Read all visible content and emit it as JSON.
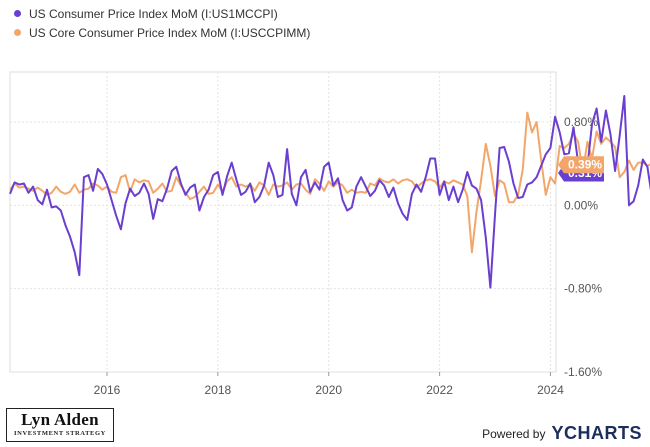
{
  "chart_data": {
    "type": "line",
    "title": "",
    "xlabel": "",
    "ylabel": "",
    "x_tick_labels": [
      "2016",
      "2018",
      "2020",
      "2022",
      "2024"
    ],
    "y_tick_labels": [
      "0.80%",
      "0.00%",
      "-0.80%",
      "-1.60%"
    ],
    "y_ticks": [
      0.8,
      0.0,
      -0.8,
      -1.6
    ],
    "ylim": [
      -1.6,
      1.28
    ],
    "xlim": [
      2014.25,
      2024.1
    ],
    "grid": true,
    "legend_position": "top-left",
    "series": [
      {
        "name": "US Consumer Price Index MoM (I:US1MCCPI)",
        "color": "#6a3fcf",
        "last_label": "0.31%",
        "x_start": 2014.25,
        "x_step": 0.08333,
        "values": [
          0.11,
          0.22,
          0.2,
          0.21,
          0.12,
          0.18,
          0.05,
          0.01,
          0.15,
          -0.02,
          -0.01,
          -0.05,
          -0.19,
          -0.3,
          -0.45,
          -0.67,
          0.27,
          0.29,
          0.14,
          0.35,
          0.3,
          0.2,
          0.05,
          -0.1,
          -0.23,
          0.02,
          0.16,
          0.09,
          0.12,
          0.21,
          0.11,
          -0.13,
          0.06,
          0.04,
          0.16,
          0.33,
          0.37,
          0.21,
          0.1,
          0.17,
          0.2,
          -0.05,
          0.08,
          0.15,
          0.29,
          0.32,
          0.1,
          0.28,
          0.41,
          0.25,
          0.1,
          0.13,
          0.21,
          0.03,
          0.08,
          0.19,
          0.41,
          0.29,
          0.08,
          0.1,
          0.54,
          0.11,
          0.0,
          0.27,
          0.34,
          0.13,
          0.22,
          0.15,
          0.37,
          0.41,
          0.19,
          0.26,
          0.05,
          -0.05,
          -0.02,
          0.18,
          0.27,
          0.18,
          0.09,
          0.14,
          0.24,
          0.19,
          0.08,
          0.17,
          0.02,
          -0.08,
          -0.14,
          0.11,
          0.2,
          0.13,
          0.27,
          0.45,
          0.45,
          0.1,
          0.23,
          0.05,
          0.18,
          0.03,
          0.15,
          0.32,
          0.19,
          0.16,
          0.05,
          -0.31,
          -0.79,
          -0.09,
          0.55,
          0.56,
          0.42,
          0.21,
          0.07,
          0.08,
          0.2,
          0.22,
          0.27,
          0.38,
          0.49,
          0.55,
          0.85,
          0.7,
          0.49,
          0.5,
          0.75,
          0.41,
          0.3,
          0.37,
          0.78,
          0.93,
          0.61,
          0.91,
          0.68,
          0.33,
          0.67,
          1.05,
          0.0,
          0.04,
          0.19,
          0.44,
          0.37,
          0.07,
          0.12,
          0.33,
          0.05,
          0.13,
          0.48,
          0.4,
          0.11,
          0.31
        ]
      },
      {
        "name": "US Core Consumer Price Index MoM (I:USCCPIMM)",
        "color": "#f3a66a",
        "last_label": "0.39%",
        "x_start": 2014.25,
        "x_step": 0.08333,
        "values": [
          0.15,
          0.21,
          0.17,
          0.18,
          0.16,
          0.14,
          0.17,
          0.14,
          0.1,
          0.12,
          0.18,
          0.13,
          0.11,
          0.13,
          0.2,
          0.12,
          0.15,
          0.16,
          0.21,
          0.19,
          0.15,
          0.18,
          0.13,
          0.12,
          0.27,
          0.29,
          0.13,
          0.25,
          0.22,
          0.24,
          0.23,
          0.12,
          0.16,
          0.21,
          0.13,
          0.14,
          0.27,
          0.19,
          0.12,
          0.06,
          0.08,
          0.13,
          0.18,
          0.11,
          0.12,
          0.2,
          0.13,
          0.23,
          0.27,
          0.18,
          0.2,
          0.18,
          0.2,
          0.14,
          0.22,
          0.19,
          0.1,
          0.2,
          0.18,
          0.19,
          0.22,
          0.15,
          0.2,
          0.21,
          0.15,
          0.11,
          0.25,
          0.21,
          0.14,
          0.23,
          0.18,
          0.22,
          0.19,
          0.12,
          0.15,
          0.12,
          0.13,
          0.12,
          0.21,
          0.19,
          0.26,
          0.23,
          0.22,
          0.25,
          0.21,
          0.24,
          0.25,
          0.23,
          0.17,
          0.21,
          0.24,
          0.25,
          0.23,
          0.17,
          0.23,
          0.21,
          0.24,
          0.22,
          0.2,
          0.09,
          -0.45,
          -0.06,
          0.24,
          0.59,
          0.38,
          0.09,
          0.24,
          0.21,
          0.03,
          0.03,
          0.1,
          0.34,
          0.89,
          0.7,
          0.8,
          0.43,
          0.1,
          0.27,
          0.21,
          0.57,
          0.55,
          0.59,
          0.69,
          0.61,
          0.32,
          0.61,
          0.45,
          0.71,
          0.59,
          0.65,
          0.61,
          0.56,
          0.27,
          0.32,
          0.43,
          0.34,
          0.41,
          0.41,
          0.38,
          0.4,
          0.44,
          0.4,
          0.17,
          0.26,
          0.3,
          0.2,
          0.28,
          0.39
        ]
      }
    ]
  },
  "branding": {
    "author_name": "Lyn Alden",
    "author_sub": "INVESTMENT STRATEGY",
    "powered_by": "Powered by",
    "provider": "YCHARTS"
  }
}
